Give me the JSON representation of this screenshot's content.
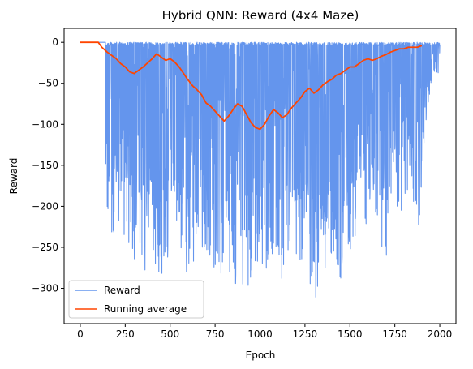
{
  "chart_data": {
    "type": "line",
    "title": "Hybrid QNN: Reward (4x4 Maze)",
    "xlabel": "Epoch",
    "ylabel": "Reward",
    "xlim": [
      -90,
      2090
    ],
    "ylim": [
      -343,
      17
    ],
    "xticks": [
      0,
      250,
      500,
      750,
      1000,
      1250,
      1500,
      1750,
      2000
    ],
    "yticks": [
      0,
      -50,
      -100,
      -150,
      -200,
      -250,
      -300
    ],
    "grid": false,
    "legend": {
      "position": "bottom-left",
      "entries": [
        "Reward",
        "Running average"
      ]
    },
    "series": [
      {
        "name": "Reward",
        "color": "#6495ED",
        "description_free": true,
        "x_start": 0,
        "x_end": 2000,
        "flat_until": 140,
        "upper_values": [
          0,
          0,
          0,
          0,
          0,
          0,
          0,
          0,
          0,
          0,
          0,
          0
        ],
        "lower_envelope": [
          [
            140,
            -212
          ],
          [
            160,
            -215
          ],
          [
            175,
            -292
          ],
          [
            195,
            -242
          ],
          [
            225,
            -250
          ],
          [
            255,
            -236
          ],
          [
            285,
            -290
          ],
          [
            315,
            -286
          ],
          [
            345,
            -283
          ],
          [
            380,
            -280
          ],
          [
            415,
            -268
          ],
          [
            450,
            -293
          ],
          [
            480,
            -282
          ],
          [
            510,
            -270
          ],
          [
            545,
            -272
          ],
          [
            575,
            -275
          ],
          [
            610,
            -296
          ],
          [
            645,
            -276
          ],
          [
            680,
            -255
          ],
          [
            715,
            -282
          ],
          [
            750,
            -280
          ],
          [
            785,
            -284
          ],
          [
            820,
            -289
          ],
          [
            850,
            -300
          ],
          [
            870,
            -308
          ],
          [
            890,
            -322
          ],
          [
            910,
            -306
          ],
          [
            930,
            -300
          ],
          [
            960,
            -283
          ],
          [
            990,
            -287
          ],
          [
            1020,
            -285
          ],
          [
            1050,
            -278
          ],
          [
            1080,
            -270
          ],
          [
            1110,
            -300
          ],
          [
            1140,
            -280
          ],
          [
            1170,
            -263
          ],
          [
            1200,
            -283
          ],
          [
            1235,
            -270
          ],
          [
            1270,
            -290
          ],
          [
            1300,
            -323
          ],
          [
            1330,
            -290
          ],
          [
            1360,
            -295
          ],
          [
            1390,
            -268
          ],
          [
            1420,
            -264
          ],
          [
            1445,
            -290
          ],
          [
            1462,
            -326
          ],
          [
            1490,
            -255
          ],
          [
            1520,
            -262
          ],
          [
            1550,
            -233
          ],
          [
            1580,
            -222
          ],
          [
            1610,
            -244
          ],
          [
            1640,
            -212
          ],
          [
            1670,
            -240
          ],
          [
            1700,
            -277
          ],
          [
            1730,
            -222
          ],
          [
            1760,
            -208
          ],
          [
            1790,
            -212
          ],
          [
            1830,
            -172
          ],
          [
            1860,
            -200
          ],
          [
            1890,
            -238
          ],
          [
            1920,
            -100
          ],
          [
            1950,
            -60
          ],
          [
            1975,
            -30
          ],
          [
            1995,
            -68
          ],
          [
            2000,
            -20
          ]
        ]
      },
      {
        "name": "Running average",
        "color": "#FF4500",
        "x": [
          0,
          100,
          120,
          150,
          175,
          200,
          225,
          250,
          275,
          300,
          325,
          350,
          375,
          400,
          425,
          450,
          475,
          500,
          525,
          550,
          575,
          600,
          625,
          650,
          675,
          700,
          725,
          750,
          775,
          800,
          825,
          850,
          875,
          900,
          925,
          950,
          975,
          1000,
          1025,
          1050,
          1075,
          1100,
          1125,
          1150,
          1175,
          1200,
          1225,
          1250,
          1275,
          1300,
          1325,
          1350,
          1375,
          1400,
          1425,
          1450,
          1475,
          1500,
          1525,
          1550,
          1575,
          1600,
          1625,
          1650,
          1675,
          1700,
          1725,
          1750,
          1775,
          1800,
          1825,
          1850,
          1875,
          1900
        ],
        "values": [
          0,
          0,
          -6,
          -12,
          -16,
          -20,
          -26,
          -30,
          -36,
          -38,
          -34,
          -30,
          -25,
          -20,
          -14,
          -18,
          -22,
          -20,
          -24,
          -30,
          -38,
          -46,
          -53,
          -58,
          -64,
          -74,
          -78,
          -84,
          -90,
          -96,
          -90,
          -82,
          -75,
          -78,
          -88,
          -98,
          -104,
          -106,
          -100,
          -90,
          -82,
          -86,
          -92,
          -88,
          -80,
          -74,
          -68,
          -60,
          -56,
          -62,
          -58,
          -52,
          -48,
          -45,
          -40,
          -38,
          -34,
          -30,
          -30,
          -26,
          -22,
          -20,
          -22,
          -20,
          -17,
          -15,
          -12,
          -10,
          -8,
          -8,
          -6,
          -6,
          -6,
          -4
        ]
      }
    ]
  }
}
